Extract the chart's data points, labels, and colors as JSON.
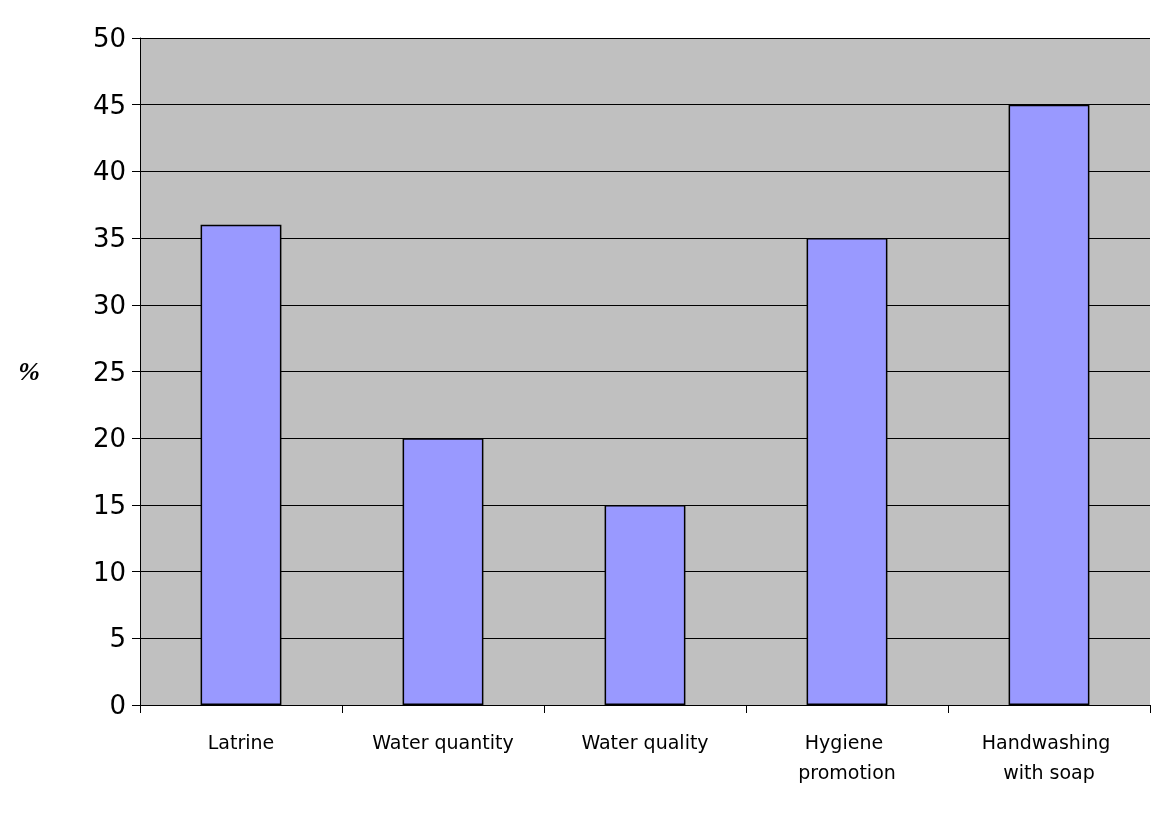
{
  "chart_data": {
    "type": "bar",
    "ylabel": "%",
    "categories": [
      "Latrine",
      "Water quantity",
      "Water quality",
      "Hygiene promotion",
      "Handwashing with soap"
    ],
    "values": [
      36,
      20,
      15,
      35,
      45
    ],
    "color": "#9999ff",
    "ylim": [
      0,
      50
    ],
    "yticks": [
      0,
      5,
      10,
      15,
      20,
      25,
      30,
      35,
      40,
      45,
      50
    ],
    "grid": true
  }
}
